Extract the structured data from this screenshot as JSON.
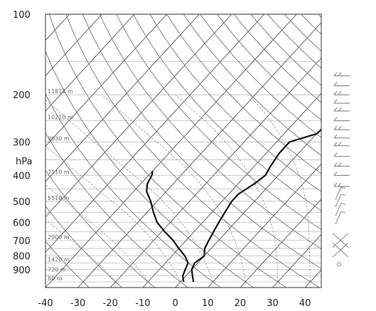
{
  "chart_data": {
    "type": "line",
    "title": "",
    "xlabel": "",
    "ylabel": "",
    "y_unit_label": "hPa",
    "x_ticks": [
      -40,
      -30,
      -20,
      -10,
      0,
      10,
      20,
      30,
      40
    ],
    "y_ticks": [
      100,
      200,
      300,
      400,
      500,
      600,
      700,
      800,
      900
    ],
    "xlim": [
      -40,
      45
    ],
    "ylim": [
      1050,
      100
    ],
    "y_scale": "log",
    "grid": true,
    "height_labels": [
      {
        "p": 200,
        "label": "11811 m"
      },
      {
        "p": 250,
        "label": "10210 m"
      },
      {
        "p": 300,
        "label": "9030 m"
      },
      {
        "p": 400,
        "label": "7110 m"
      },
      {
        "p": 500,
        "label": "5510 m"
      },
      {
        "p": 700,
        "label": "2900 m"
      },
      {
        "p": 850,
        "label": "1420 m"
      },
      {
        "p": 925,
        "label": "720 m"
      },
      {
        "p": 1000,
        "label": "80 m"
      }
    ],
    "series": [
      {
        "points": [
          [
            4,
            1000
          ],
          [
            2,
            950
          ],
          [
            0,
            900
          ],
          [
            -1,
            850
          ],
          [
            0,
            800
          ],
          [
            -2,
            750
          ],
          [
            -3,
            700
          ],
          [
            -4,
            650
          ],
          [
            -5,
            600
          ],
          [
            -6,
            550
          ],
          [
            -7,
            500
          ],
          [
            -7,
            470
          ],
          [
            -5,
            430
          ],
          [
            -4,
            400
          ],
          [
            -5,
            370
          ],
          [
            -6,
            330
          ],
          [
            -6,
            300
          ],
          [
            0,
            280
          ],
          [
            1,
            250
          ],
          [
            3,
            225
          ],
          [
            6,
            200
          ],
          [
            8,
            185
          ],
          [
            10,
            170
          ],
          [
            11,
            155
          ]
        ]
      },
      {
        "points": [
          [
            1,
            1000
          ],
          [
            -1,
            950
          ],
          [
            -2,
            900
          ],
          [
            -3,
            850
          ],
          [
            -6,
            800
          ],
          [
            -10,
            750
          ],
          [
            -14,
            700
          ],
          [
            -19,
            650
          ],
          [
            -24,
            600
          ],
          [
            -28,
            550
          ],
          [
            -32,
            500
          ],
          [
            -36,
            460
          ],
          [
            -38,
            430
          ],
          [
            -39,
            400
          ],
          [
            -40,
            385
          ]
        ]
      }
    ]
  }
}
